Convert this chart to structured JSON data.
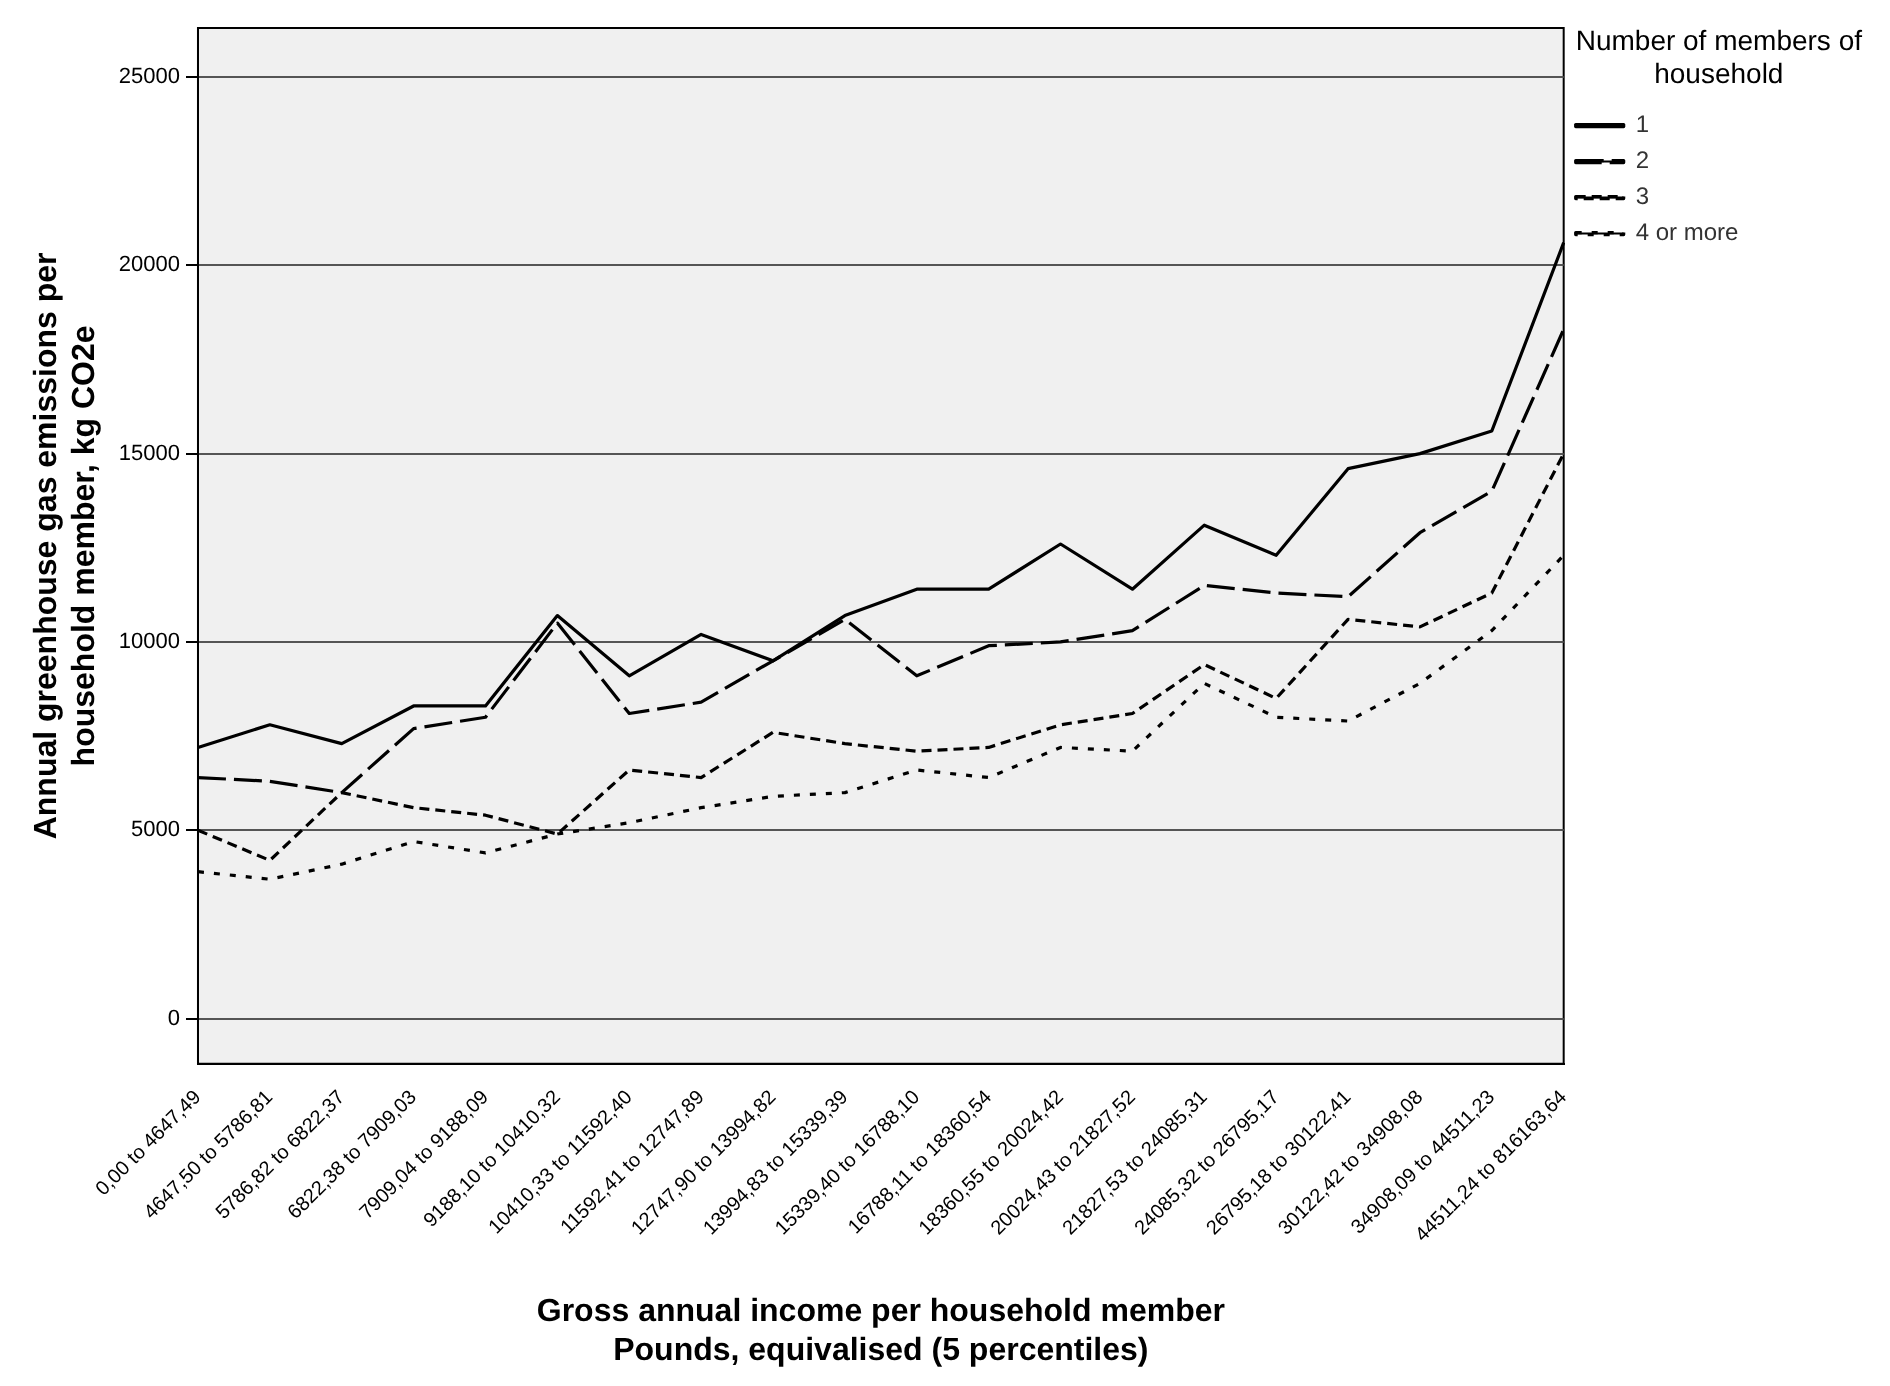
{
  "chart_data": {
    "type": "line",
    "xlabel": "Gross annual income per household member\nPounds, equivalised (5 percentiles)",
    "ylabel": "Annual greenhouse gas emissions per\nhousehold member, kg CO2e",
    "legend_title": "Number of members of\nhousehold",
    "categories": [
      "0,00 to 4647,49",
      "4647,50 to 5786,81",
      "5786,82 to 6822,37",
      "6822,38 to 7909,03",
      "7909,04 to 9188,09",
      "9188,10 to 10410,32",
      "10410,33 to 11592,40",
      "11592,41 to 12747,89",
      "12747,90 to 13994,82",
      "13994,83 to 15339,39",
      "15339,40 to 16788,10",
      "16788,11 to 18360,54",
      "18360,55 to 20024,42",
      "20024,43 to 21827,52",
      "21827,53 to 24085,31",
      "24085,32 to 26795,17",
      "26795,18 to 30122,41",
      "30122,42 to 34908,08",
      "34908,09 to 44511,23",
      "44511,24 to 816163,64"
    ],
    "series": [
      {
        "name": "1",
        "color": "#000000",
        "line_style": "solid",
        "values": [
          7200,
          7800,
          7300,
          8300,
          8300,
          10700,
          9100,
          10200,
          9500,
          10700,
          11400,
          11400,
          12600,
          11400,
          13100,
          12300,
          14600,
          15000,
          15600,
          20600
        ]
      },
      {
        "name": "2",
        "color": "#000000",
        "line_style": "dashed",
        "values": [
          6400,
          6300,
          6000,
          7700,
          8000,
          10500,
          8100,
          8400,
          9500,
          10600,
          9100,
          9900,
          10000,
          10300,
          11500,
          11300,
          11200,
          12900,
          14000,
          18300
        ]
      },
      {
        "name": "3",
        "color": "#000000",
        "line_style": "dashed",
        "values": [
          5000,
          4200,
          6000,
          5600,
          5400,
          4900,
          6600,
          6400,
          7600,
          7300,
          7100,
          7200,
          7800,
          8100,
          9400,
          8500,
          10600,
          10400,
          11300,
          15000
        ]
      },
      {
        "name": "4 or more",
        "color": "#000000",
        "line_style": "dotted",
        "values": [
          3900,
          3700,
          4100,
          4700,
          4400,
          4900,
          5200,
          5600,
          5900,
          6000,
          6600,
          6400,
          7200,
          7100,
          8900,
          8000,
          7900,
          8900,
          10300,
          12300
        ]
      }
    ],
    "ylim": [
      -1200,
      26300
    ],
    "yticks": [
      0,
      5000,
      10000,
      15000,
      20000,
      25000
    ],
    "grid": "y",
    "legend": "top right",
    "marker": "none"
  }
}
